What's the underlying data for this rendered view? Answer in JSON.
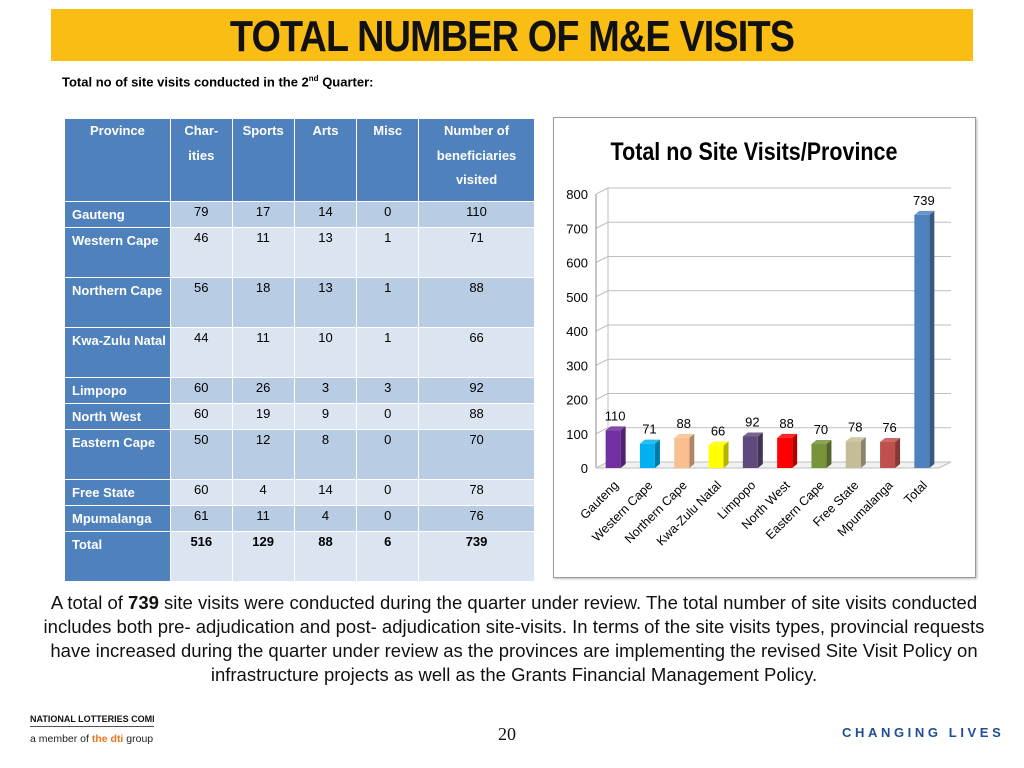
{
  "title": "TOTAL NUMBER OF M&E VISITS",
  "subtitle": {
    "prefix": "Total no of site visits conducted in the 2",
    "sup": "nd",
    "suffix": " Quarter:"
  },
  "table": {
    "headers": [
      "Province",
      "Char-ities",
      "Sports",
      "Arts",
      "Misc",
      "Number of beneficiaries visited"
    ],
    "rows": [
      {
        "province": "Gauteng",
        "values": [
          "79",
          "17",
          "14",
          "0",
          "110"
        ]
      },
      {
        "province": "Western Cape",
        "values": [
          "46",
          "11",
          "13",
          "1",
          "71"
        ]
      },
      {
        "province": "Northern Cape",
        "values": [
          "56",
          "18",
          "13",
          "1",
          "88"
        ]
      },
      {
        "province": "Kwa-Zulu Natal",
        "values": [
          "44",
          "11",
          "10",
          "1",
          "66"
        ]
      },
      {
        "province": "Limpopo",
        "values": [
          "60",
          "26",
          "3",
          "3",
          "92"
        ]
      },
      {
        "province": "North West",
        "values": [
          "60",
          "19",
          "9",
          "0",
          "88"
        ]
      },
      {
        "province": "Eastern Cape",
        "values": [
          "50",
          "12",
          "8",
          "0",
          "70"
        ]
      },
      {
        "province": "Free State",
        "values": [
          "60",
          "4",
          "14",
          "0",
          "78"
        ]
      },
      {
        "province": "Mpumalanga",
        "values": [
          "61",
          "11",
          "4",
          "0",
          "76"
        ]
      },
      {
        "province": "Total",
        "values": [
          "516",
          "129",
          "88",
          "6",
          "739"
        ]
      }
    ]
  },
  "chart_data": {
    "type": "bar",
    "title": "Total no Site Visits/Province",
    "categories": [
      "Gauteng",
      "Western Cape",
      "Northern Cape",
      "Kwa-Zulu Natal",
      "Limpopo",
      "North West",
      "Eastern Cape",
      "Free State",
      "Mpumalanga",
      "Total"
    ],
    "values": [
      110,
      71,
      88,
      66,
      92,
      88,
      70,
      78,
      76,
      739
    ],
    "colors": [
      "#7030a0",
      "#00b0f0",
      "#fabf8f",
      "#ffff00",
      "#604a7b",
      "#ff0000",
      "#77933c",
      "#c4bd97",
      "#c0504d",
      "#4f81bd"
    ],
    "ylim": [
      0,
      800
    ],
    "yticks": [
      0,
      100,
      200,
      300,
      400,
      500,
      600,
      700,
      800
    ],
    "xlabel": "",
    "ylabel": "",
    "grid": true,
    "legend": "none"
  },
  "paragraph": {
    "before": "A total of ",
    "bold": "739",
    "after": " site visits were conducted during the quarter under review. The total number of site visits conducted includes both pre- adjudication and post- adjudication site-visits. In terms of the site visits types, provincial requests have increased during the quarter under review as the provinces are implementing the revised Site Visit Policy on infrastructure projects as well as the Grants Financial Management Policy."
  },
  "footer": {
    "org": "NATIONAL LOTTERIES COMMISSION",
    "member_prefix": "a member of ",
    "member_brand": "the dti",
    "member_suffix": " group",
    "page_number": "20",
    "slogan": "CHANGING LIVES"
  }
}
